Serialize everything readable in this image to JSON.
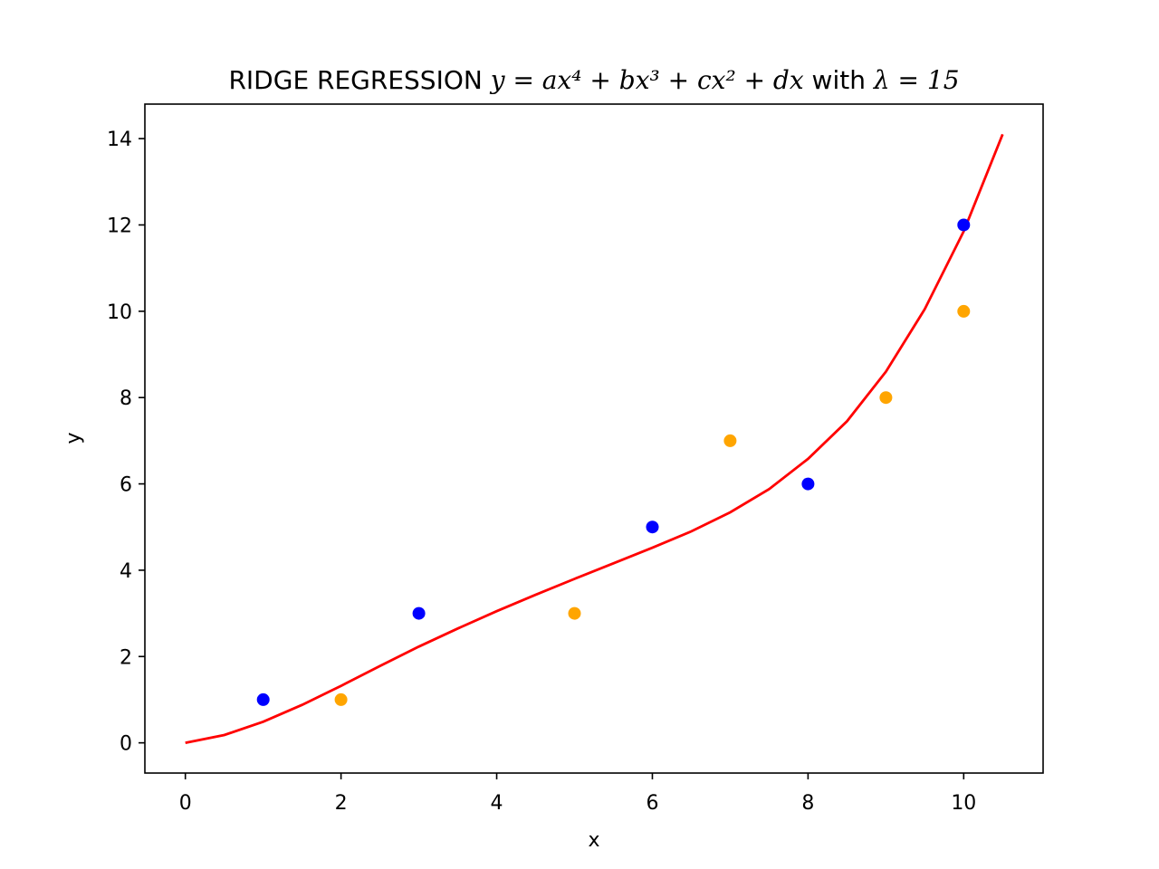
{
  "chart_data": {
    "type": "scatter",
    "title": {
      "prefix": "RIDGE REGRESSION ",
      "equation": "y = ax⁴ + bx³ + cx² + dx",
      "suffix": " with ",
      "lambda": "λ = 15"
    },
    "xlabel": "x",
    "ylabel": "y",
    "xlim": [
      -0.52,
      11.02
    ],
    "ylim": [
      -0.7,
      14.8
    ],
    "xticks": [
      0,
      2,
      4,
      6,
      8,
      10
    ],
    "yticks": [
      0,
      2,
      4,
      6,
      8,
      10,
      12,
      14
    ],
    "grid": false,
    "series": [
      {
        "kind": "scatter",
        "color": "#0000ff",
        "points": [
          [
            1,
            1
          ],
          [
            3,
            3
          ],
          [
            6,
            5
          ],
          [
            8,
            6
          ],
          [
            10,
            12
          ]
        ]
      },
      {
        "kind": "scatter",
        "color": "#ffa500",
        "points": [
          [
            2,
            1
          ],
          [
            5,
            3
          ],
          [
            7,
            7
          ],
          [
            9,
            8
          ],
          [
            10,
            10
          ]
        ]
      },
      {
        "kind": "line",
        "color": "#ff0000",
        "points": [
          [
            0,
            0
          ],
          [
            0.5,
            0.18
          ],
          [
            1,
            0.49
          ],
          [
            1.5,
            0.88
          ],
          [
            2,
            1.32
          ],
          [
            2.5,
            1.78
          ],
          [
            3,
            2.23
          ],
          [
            3.5,
            2.65
          ],
          [
            4,
            3.05
          ],
          [
            4.5,
            3.43
          ],
          [
            5,
            3.8
          ],
          [
            5.5,
            4.16
          ],
          [
            6,
            4.52
          ],
          [
            6.5,
            4.9
          ],
          [
            7,
            5.34
          ],
          [
            7.5,
            5.88
          ],
          [
            8,
            6.58
          ],
          [
            8.5,
            7.45
          ],
          [
            9,
            8.6
          ],
          [
            9.5,
            10.05
          ],
          [
            10,
            11.85
          ],
          [
            10.5,
            14.1
          ]
        ]
      }
    ]
  }
}
